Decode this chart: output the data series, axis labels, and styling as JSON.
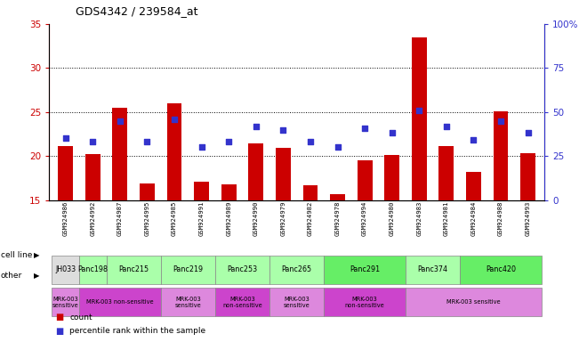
{
  "title": "GDS4342 / 239584_at",
  "samples": [
    "GSM924986",
    "GSM924992",
    "GSM924987",
    "GSM924995",
    "GSM924985",
    "GSM924991",
    "GSM924989",
    "GSM924990",
    "GSM924979",
    "GSM924982",
    "GSM924978",
    "GSM924994",
    "GSM924980",
    "GSM924983",
    "GSM924981",
    "GSM924984",
    "GSM924988",
    "GSM924993"
  ],
  "counts": [
    21.1,
    20.2,
    25.5,
    16.9,
    26.0,
    17.1,
    16.8,
    21.4,
    20.9,
    16.7,
    15.7,
    19.5,
    20.1,
    33.5,
    21.1,
    18.2,
    25.1,
    20.3
  ],
  "percentile_ranks": [
    35,
    33,
    45,
    33,
    46,
    30,
    33,
    42,
    40,
    33,
    30,
    41,
    38,
    51,
    42,
    34,
    45,
    38
  ],
  "ylim_left": [
    15,
    35
  ],
  "ylim_right": [
    0,
    100
  ],
  "yticks_left": [
    15,
    20,
    25,
    30,
    35
  ],
  "yticks_right": [
    0,
    25,
    50,
    75,
    100
  ],
  "ytick_labels_right": [
    "0",
    "25",
    "50",
    "75",
    "100%"
  ],
  "bar_color": "#cc0000",
  "dot_color": "#3333cc",
  "cell_lines": [
    {
      "name": "JH033",
      "start": 0,
      "end": 1,
      "color": "#dddddd"
    },
    {
      "name": "Panc198",
      "start": 1,
      "end": 2,
      "color": "#aaffaa"
    },
    {
      "name": "Panc215",
      "start": 2,
      "end": 4,
      "color": "#aaffaa"
    },
    {
      "name": "Panc219",
      "start": 4,
      "end": 6,
      "color": "#aaffaa"
    },
    {
      "name": "Panc253",
      "start": 6,
      "end": 8,
      "color": "#aaffaa"
    },
    {
      "name": "Panc265",
      "start": 8,
      "end": 10,
      "color": "#aaffaa"
    },
    {
      "name": "Panc291",
      "start": 10,
      "end": 13,
      "color": "#66ee66"
    },
    {
      "name": "Panc374",
      "start": 13,
      "end": 15,
      "color": "#aaffaa"
    },
    {
      "name": "Panc420",
      "start": 15,
      "end": 18,
      "color": "#66ee66"
    }
  ],
  "other_groups": [
    {
      "name": "MRK-003\nsensitive",
      "start": 0,
      "end": 1,
      "color": "#dd88dd"
    },
    {
      "name": "MRK-003 non-sensitive",
      "start": 1,
      "end": 4,
      "color": "#cc44cc"
    },
    {
      "name": "MRK-003\nsensitive",
      "start": 4,
      "end": 6,
      "color": "#dd88dd"
    },
    {
      "name": "MRK-003\nnon-sensitive",
      "start": 6,
      "end": 8,
      "color": "#cc44cc"
    },
    {
      "name": "MRK-003\nsensitive",
      "start": 8,
      "end": 10,
      "color": "#dd88dd"
    },
    {
      "name": "MRK-003\nnon-sensitive",
      "start": 10,
      "end": 13,
      "color": "#cc44cc"
    },
    {
      "name": "MRK-003 sensitive",
      "start": 13,
      "end": 18,
      "color": "#dd88dd"
    }
  ]
}
